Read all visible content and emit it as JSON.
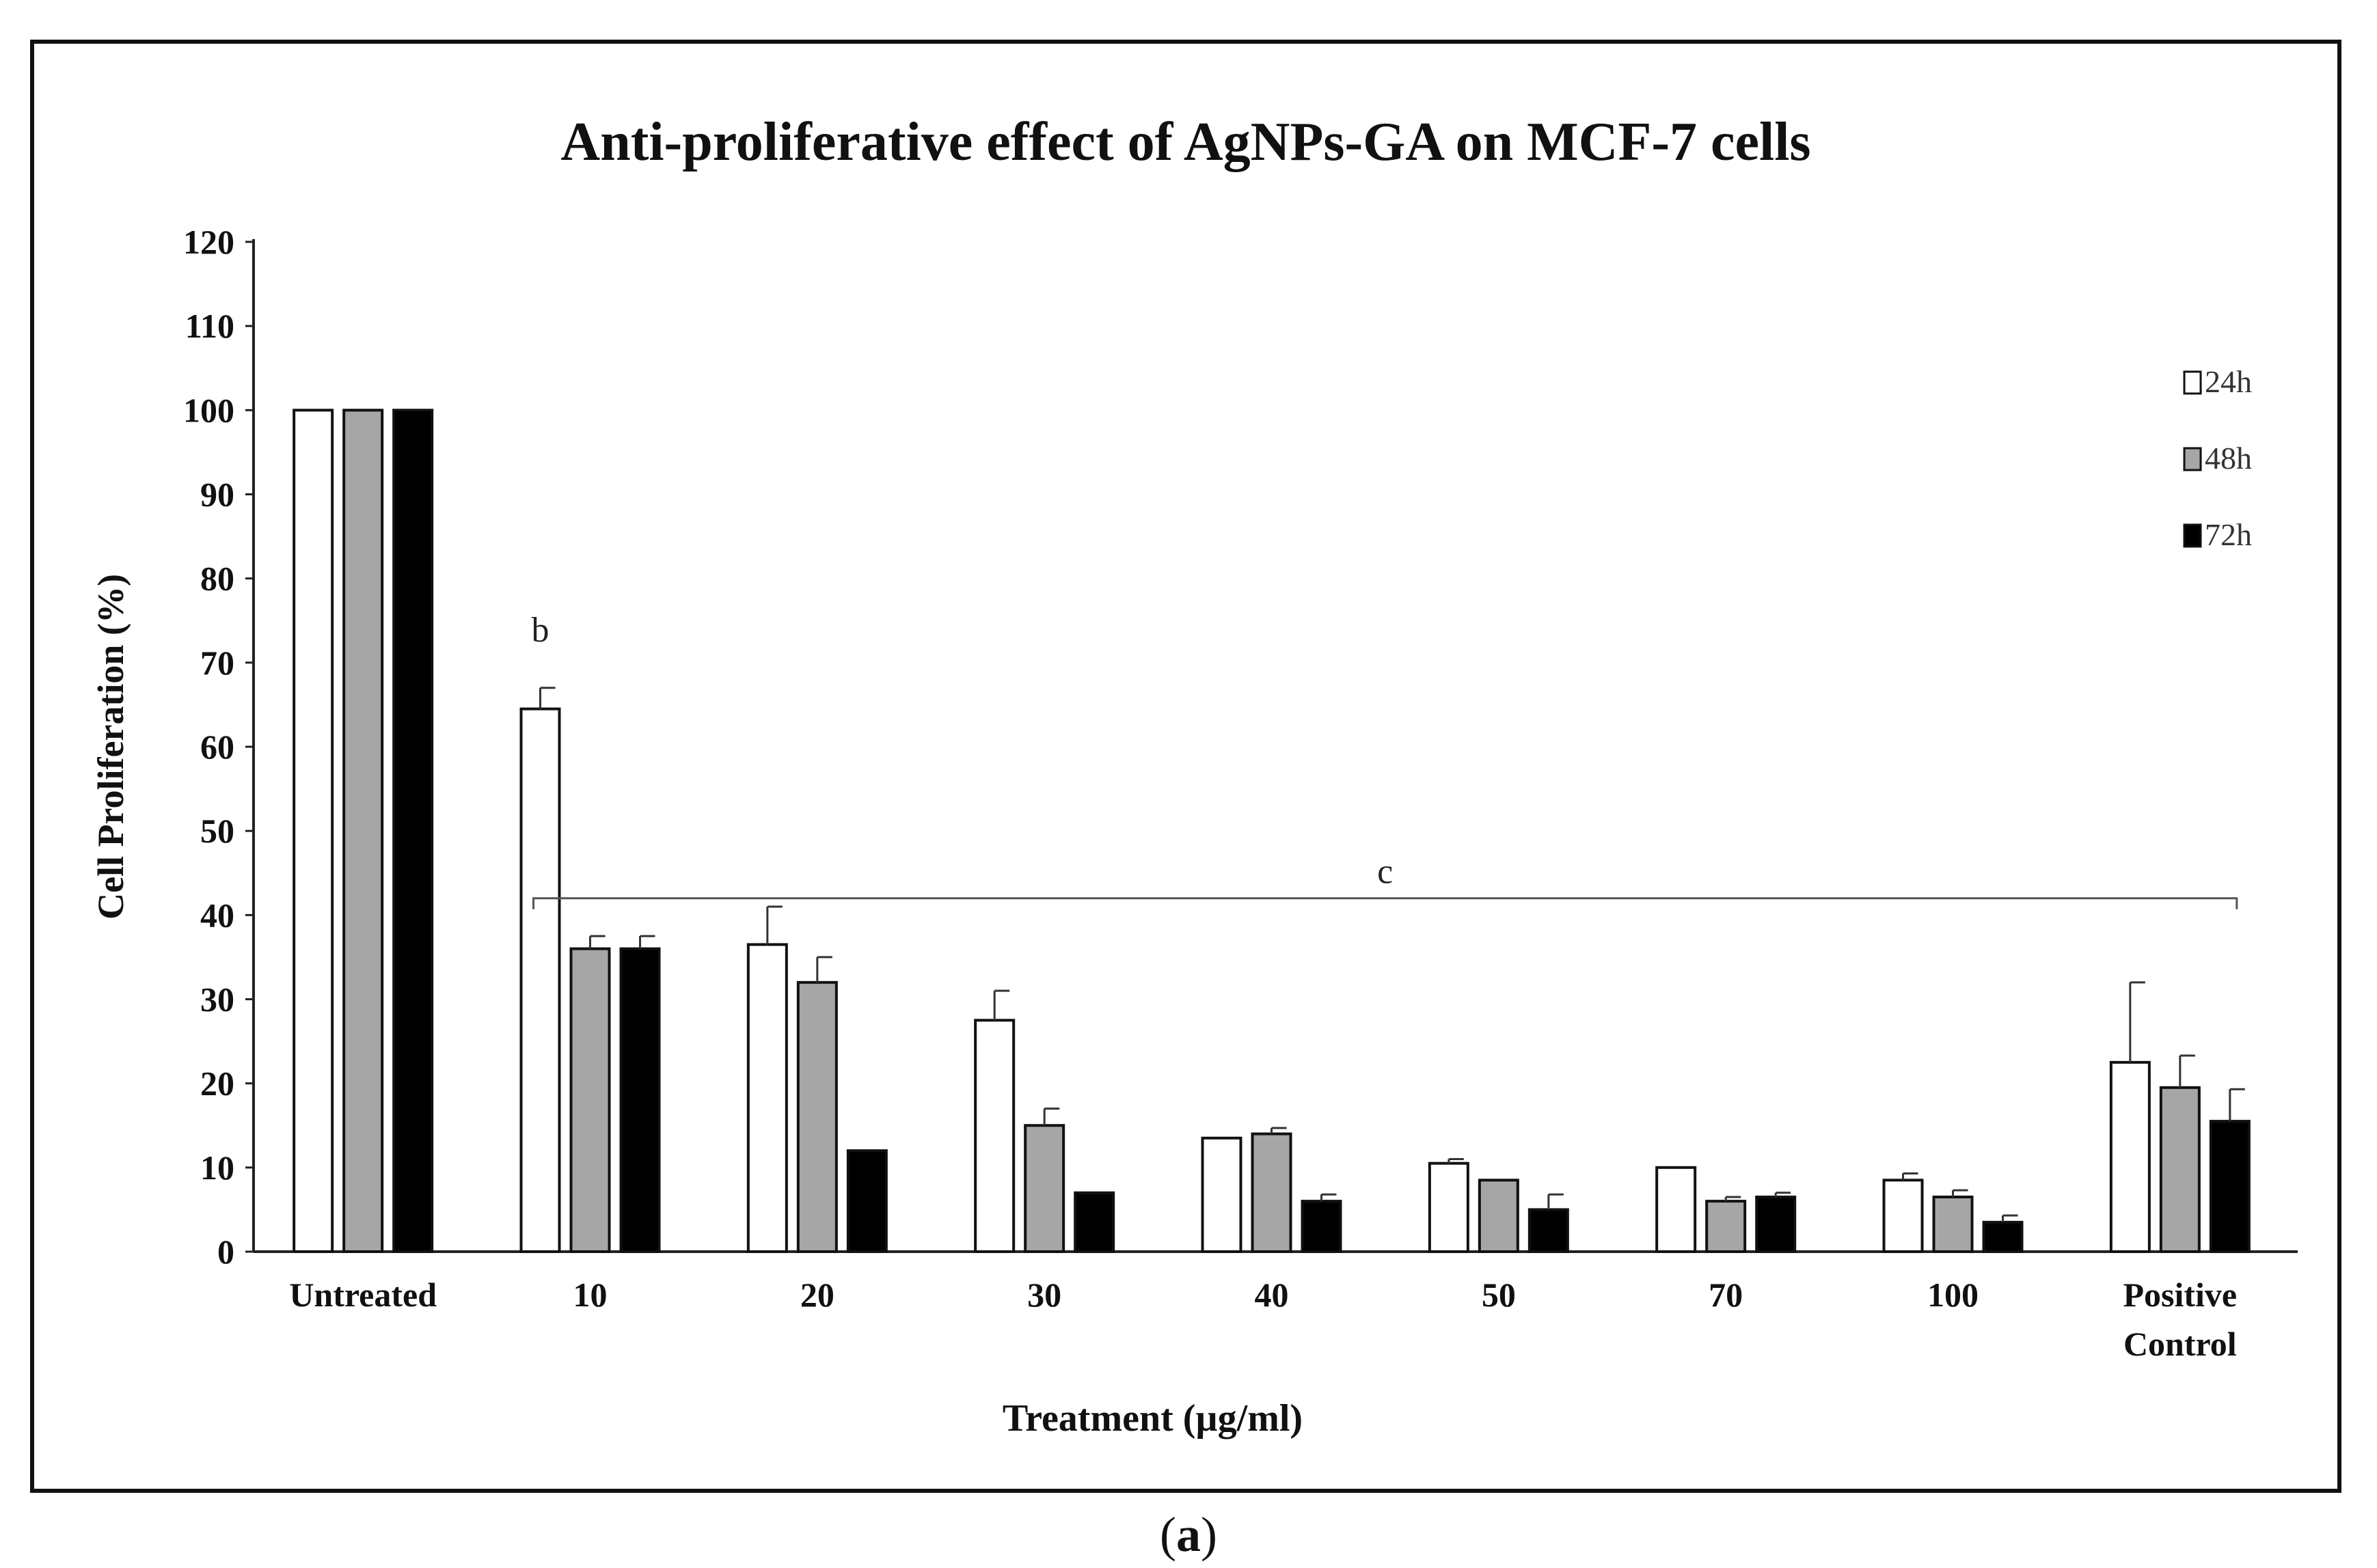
{
  "chart_data": {
    "type": "bar",
    "title": "Anti-proliferative effect of AgNPs-GA on MCF-7 cells",
    "xlabel": "Treatment (µg/ml)",
    "ylabel": "Cell Proliferation (%)",
    "ylim": [
      0,
      120
    ],
    "yticks": [
      0,
      10,
      20,
      30,
      40,
      50,
      60,
      70,
      80,
      90,
      100,
      110,
      120
    ],
    "categories": [
      "Untreated",
      "10",
      "20",
      "30",
      "40",
      "50",
      "70",
      "100",
      "Positive Control"
    ],
    "series": [
      {
        "name": "24h",
        "color": "#ffffff",
        "values": [
          100,
          64.5,
          36.5,
          27.5,
          13.5,
          10.5,
          10,
          8.5,
          22.5
        ],
        "errors": [
          0,
          2.5,
          4.5,
          3.5,
          0,
          0.5,
          0,
          0.8,
          9.5
        ]
      },
      {
        "name": "48h",
        "color": "#a6a6a6",
        "values": [
          100,
          36,
          32,
          15,
          14,
          8.5,
          6,
          6.5,
          19.5
        ],
        "errors": [
          0,
          1.5,
          3,
          2,
          0.7,
          0,
          0.5,
          0.8,
          3.8
        ]
      },
      {
        "name": "72h",
        "color": "#000000",
        "values": [
          100,
          36,
          12,
          7,
          6,
          5,
          6.5,
          3.5,
          15.5
        ],
        "errors": [
          0,
          1.5,
          0,
          0,
          0.8,
          1.8,
          0.5,
          0.8,
          3.8
        ]
      }
    ],
    "annotations": [
      {
        "text": "b",
        "category": "10",
        "series": "24h",
        "y": 72.5
      },
      {
        "text": "c",
        "from_category": "10",
        "to_category": "Positive Control",
        "y": 42
      }
    ],
    "legend": "right",
    "grid": false
  },
  "caption": {
    "open": "(",
    "letter": "a",
    "close": ")"
  }
}
